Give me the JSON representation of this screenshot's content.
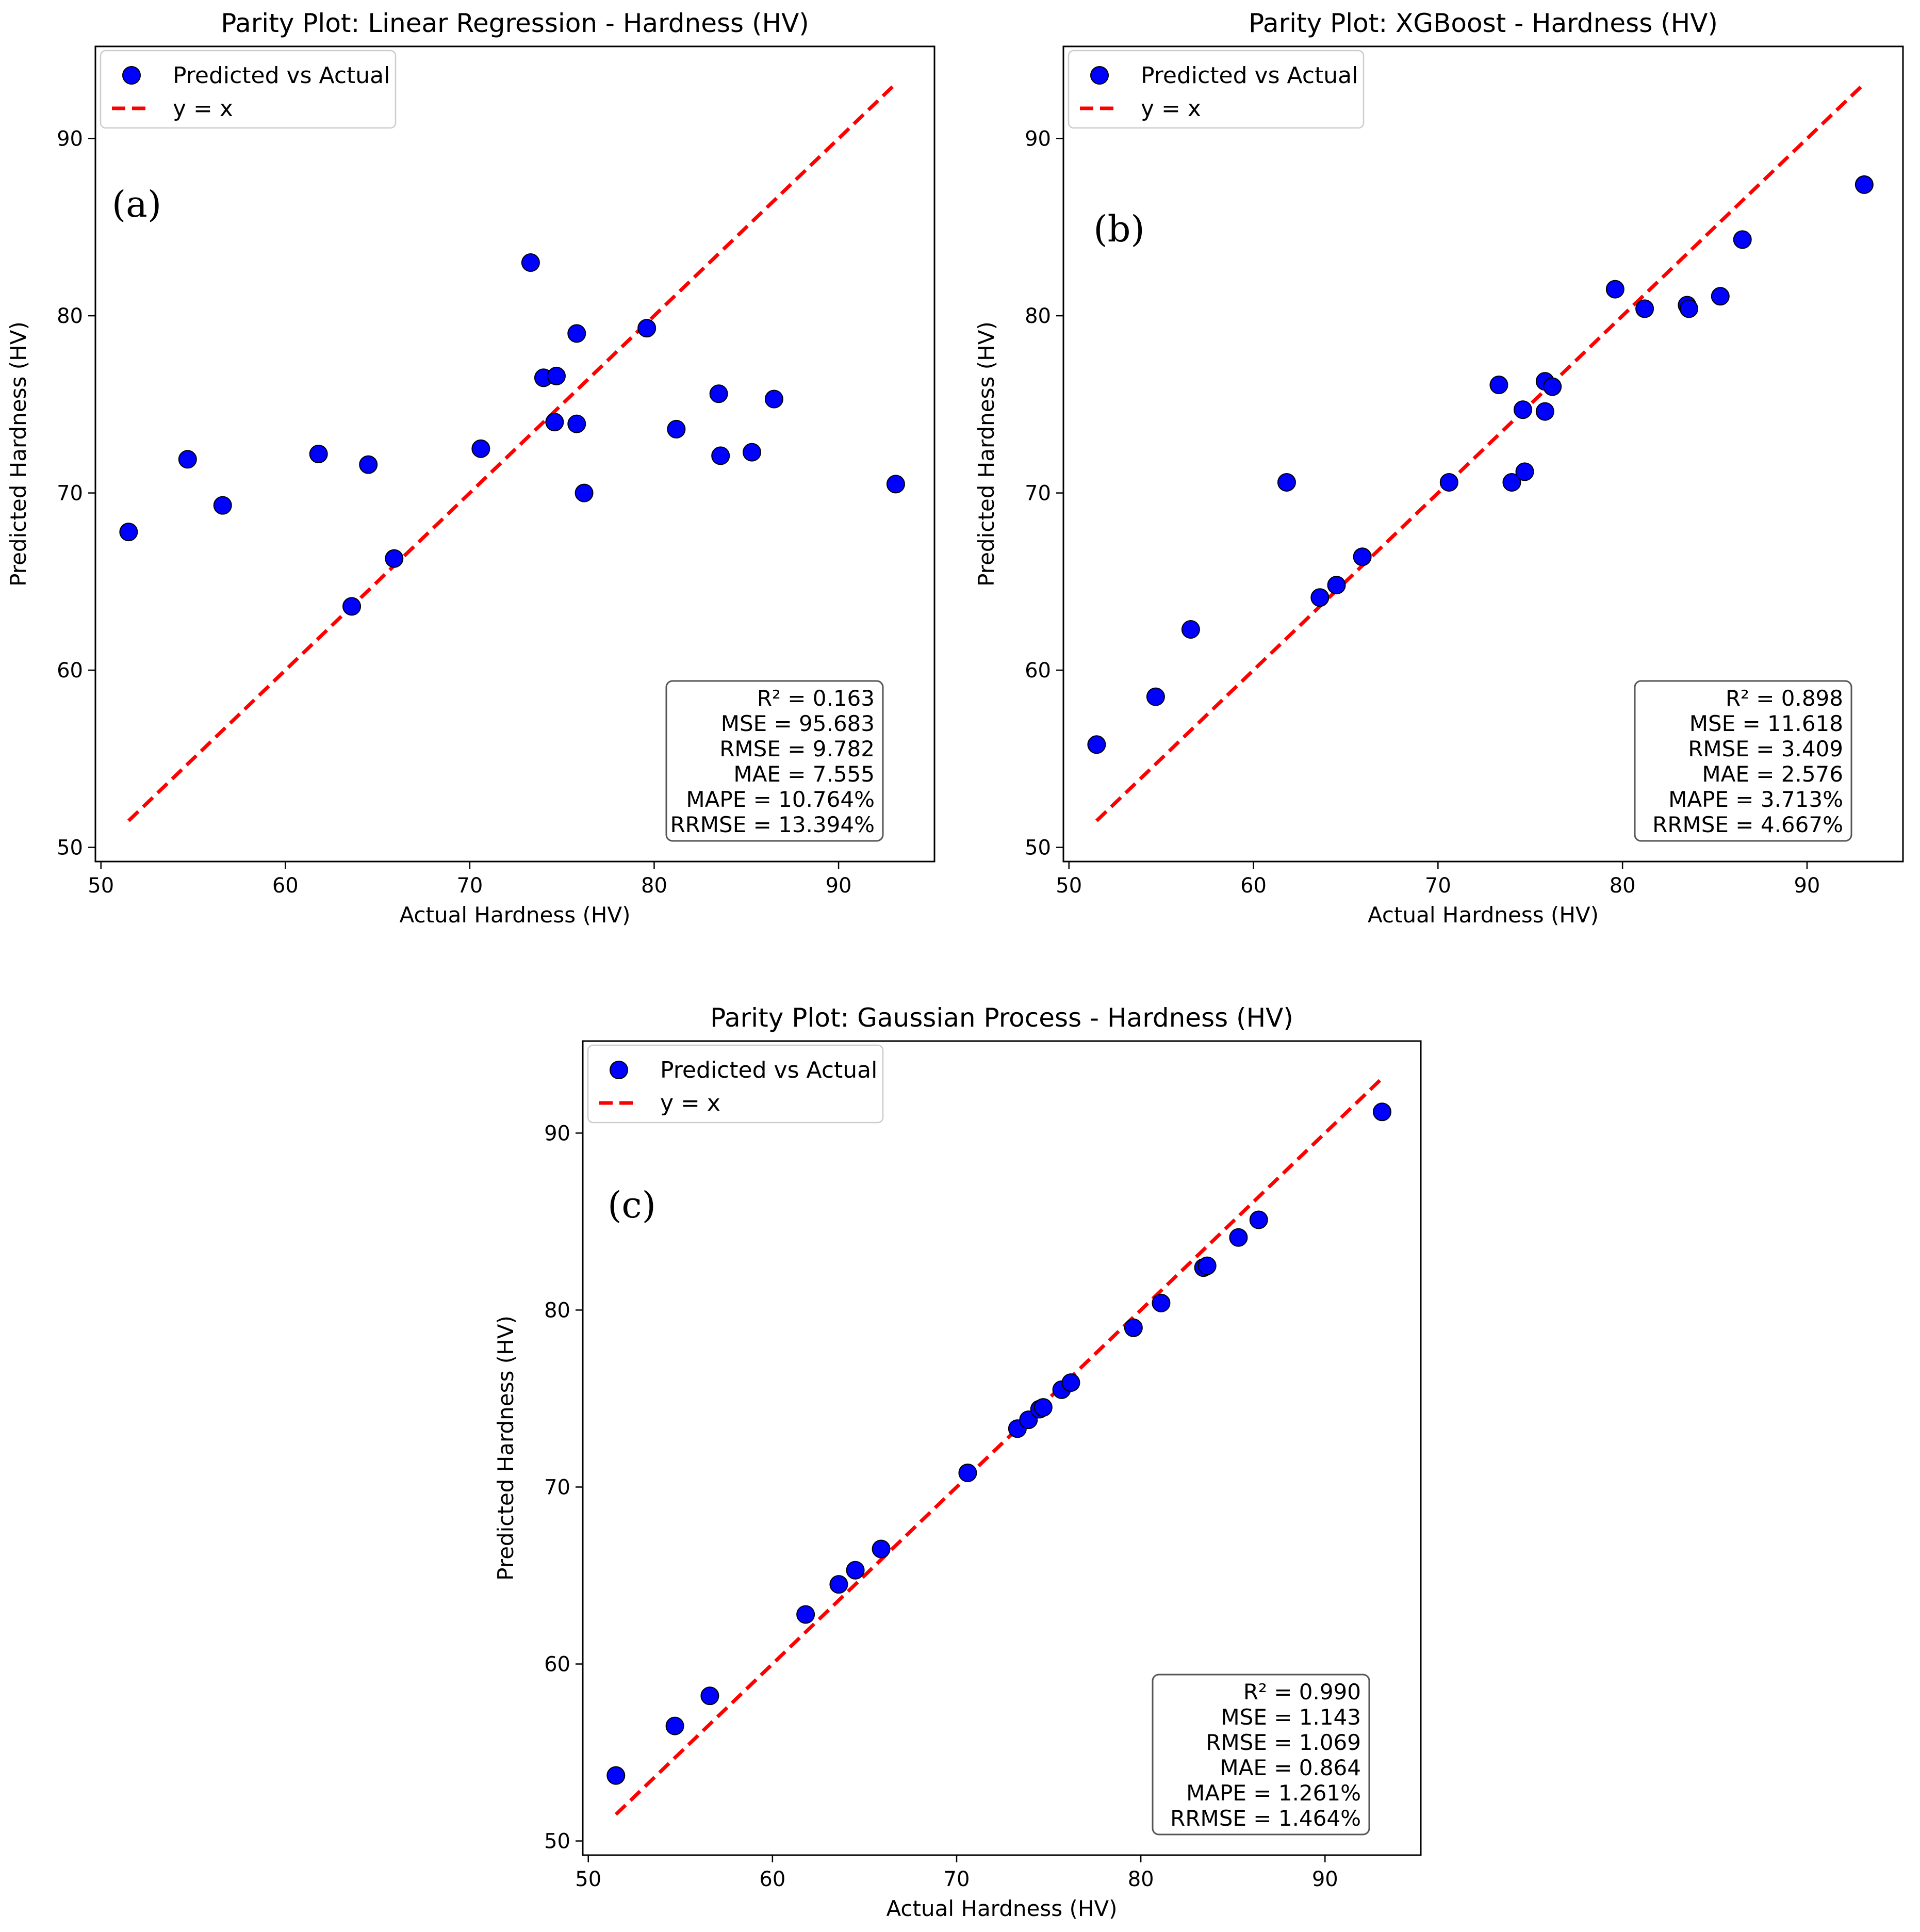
{
  "chart_data": [
    {
      "type": "scatter",
      "panel_label": "(a)",
      "title": "Parity Plot: Linear Regression - Hardness (HV)",
      "xlabel": "Actual Hardness (HV)",
      "ylabel": "Predicted Hardness (HV)",
      "xlim": [
        49.7,
        95.2
      ],
      "ylim": [
        49.2,
        95.2
      ],
      "xticks": [
        50,
        60,
        70,
        80,
        90
      ],
      "yticks": [
        50,
        60,
        70,
        80,
        90
      ],
      "legend": {
        "location": "upper-left",
        "scatter_label": "Predicted vs Actual",
        "line_label": "y = x"
      },
      "reference_line": {
        "from": 51.5,
        "to": 93.1
      },
      "metrics": [
        "R² = 0.163",
        "MSE = 95.683",
        "RMSE = 9.782",
        "MAE = 7.555",
        "MAPE = 10.764%",
        "RRMSE = 13.394%"
      ],
      "x": [
        51.5,
        54.7,
        56.6,
        61.8,
        63.6,
        64.5,
        65.9,
        70.6,
        73.3,
        74.0,
        74.6,
        74.7,
        75.8,
        75.8,
        76.2,
        79.6,
        81.2,
        83.5,
        83.6,
        85.3,
        86.5,
        93.1
      ],
      "y": [
        67.8,
        71.9,
        69.3,
        72.2,
        63.6,
        71.6,
        66.3,
        72.5,
        83.0,
        76.5,
        74.0,
        76.6,
        79.0,
        73.9,
        70.0,
        79.3,
        73.6,
        75.6,
        72.1,
        72.3,
        75.3,
        70.5
      ],
      "marker_color": "#0000ff",
      "line_color": "#ff0000"
    },
    {
      "type": "scatter",
      "panel_label": "(b)",
      "title": "Parity Plot: XGBoost - Hardness (HV)",
      "xlabel": "Actual Hardness (HV)",
      "ylabel": "Predicted Hardness (HV)",
      "xlim": [
        49.7,
        95.2
      ],
      "ylim": [
        49.2,
        95.2
      ],
      "xticks": [
        50,
        60,
        70,
        80,
        90
      ],
      "yticks": [
        50,
        60,
        70,
        80,
        90
      ],
      "legend": {
        "location": "upper-left",
        "scatter_label": "Predicted vs Actual",
        "line_label": "y = x"
      },
      "reference_line": {
        "from": 51.5,
        "to": 93.1
      },
      "metrics": [
        "R² = 0.898",
        "MSE = 11.618",
        "RMSE = 3.409",
        "MAE = 2.576",
        "MAPE = 3.713%",
        "RRMSE = 4.667%"
      ],
      "x": [
        51.5,
        54.7,
        56.6,
        61.8,
        63.6,
        64.5,
        65.9,
        70.6,
        73.3,
        74.0,
        74.6,
        74.7,
        75.8,
        75.8,
        76.2,
        79.6,
        81.2,
        83.5,
        83.6,
        85.3,
        86.5,
        93.1
      ],
      "y": [
        55.8,
        58.5,
        62.3,
        70.6,
        64.1,
        64.8,
        66.4,
        70.6,
        76.1,
        70.6,
        74.7,
        71.2,
        76.3,
        74.6,
        76.0,
        81.5,
        80.4,
        80.6,
        80.4,
        81.1,
        84.3,
        87.4
      ],
      "marker_color": "#0000ff",
      "line_color": "#ff0000"
    },
    {
      "type": "scatter",
      "panel_label": "(c)",
      "title": "Parity Plot: Gaussian Process - Hardness (HV)",
      "xlabel": "Actual Hardness (HV)",
      "ylabel": "Predicted Hardness (HV)",
      "xlim": [
        49.7,
        95.2
      ],
      "ylim": [
        49.2,
        95.2
      ],
      "xticks": [
        50,
        60,
        70,
        80,
        90
      ],
      "yticks": [
        50,
        60,
        70,
        80,
        90
      ],
      "legend": {
        "location": "upper-left",
        "scatter_label": "Predicted vs Actual",
        "line_label": "y = x"
      },
      "reference_line": {
        "from": 51.5,
        "to": 93.1
      },
      "metrics": [
        "R² = 0.990",
        "MSE = 1.143",
        "RMSE = 1.069",
        "MAE = 0.864",
        "MAPE = 1.261%",
        "RRMSE = 1.464%"
      ],
      "x": [
        51.5,
        54.7,
        56.6,
        61.8,
        63.6,
        64.5,
        65.9,
        70.6,
        73.3,
        73.9,
        74.5,
        74.7,
        75.7,
        76.2,
        79.6,
        81.1,
        83.4,
        83.6,
        85.3,
        86.4,
        93.1
      ],
      "y": [
        53.7,
        56.5,
        58.2,
        62.8,
        64.5,
        65.3,
        66.5,
        70.8,
        73.3,
        73.8,
        74.4,
        74.5,
        75.5,
        75.9,
        79.0,
        80.4,
        82.4,
        82.5,
        84.1,
        85.1,
        91.2
      ],
      "marker_color": "#0000ff",
      "line_color": "#ff0000"
    }
  ]
}
